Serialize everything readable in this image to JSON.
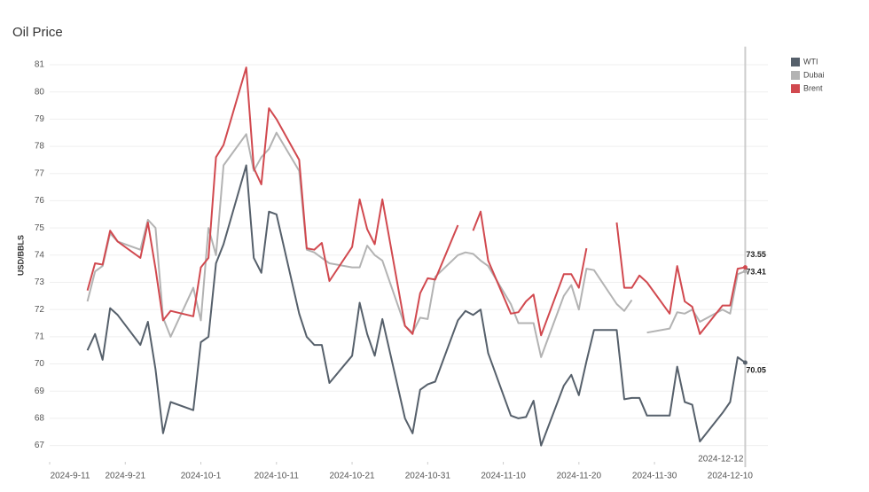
{
  "chart_data": {
    "type": "line",
    "title": "Oil Price",
    "y_label": "USD/BBLS",
    "x": [
      "2024-9-16",
      "2024-9-17",
      "2024-9-18",
      "2024-9-19",
      "2024-9-20",
      "2024-9-23",
      "2024-9-24",
      "2024-9-25",
      "2024-9-26",
      "2024-9-27",
      "2024-9-30",
      "2024-10-1",
      "2024-10-2",
      "2024-10-3",
      "2024-10-4",
      "2024-10-7",
      "2024-10-8",
      "2024-10-9",
      "2024-10-10",
      "2024-10-11",
      "2024-10-14",
      "2024-10-15",
      "2024-10-16",
      "2024-10-17",
      "2024-10-18",
      "2024-10-21",
      "2024-10-22",
      "2024-10-23",
      "2024-10-24",
      "2024-10-25",
      "2024-10-28",
      "2024-10-29",
      "2024-10-30",
      "2024-10-31",
      "2024-11-1",
      "2024-11-4",
      "2024-11-5",
      "2024-11-6",
      "2024-11-7",
      "2024-11-8",
      "2024-11-11",
      "2024-11-12",
      "2024-11-13",
      "2024-11-14",
      "2024-11-15",
      "2024-11-18",
      "2024-11-19",
      "2024-11-20",
      "2024-11-21",
      "2024-11-22",
      "2024-11-25",
      "2024-11-26",
      "2024-11-27",
      "2024-11-28",
      "2024-11-29",
      "2024-12-2",
      "2024-12-3",
      "2024-12-4",
      "2024-12-5",
      "2024-12-6",
      "2024-12-9",
      "2024-12-10",
      "2024-12-11",
      "2024-12-12"
    ],
    "series": [
      {
        "name": "WTI",
        "color": "#56606b",
        "values": [
          70.5,
          71.1,
          70.15,
          72.05,
          71.8,
          70.7,
          71.55,
          69.8,
          67.45,
          68.6,
          68.3,
          70.8,
          71.0,
          73.7,
          74.4,
          77.3,
          73.9,
          73.35,
          75.6,
          75.5,
          71.85,
          71.0,
          70.7,
          70.7,
          69.3,
          70.3,
          72.25,
          71.1,
          70.3,
          71.65,
          68.0,
          67.45,
          69.05,
          69.25,
          69.35,
          71.6,
          71.95,
          71.8,
          72.0,
          70.4,
          68.1,
          68.0,
          68.05,
          68.65,
          67.0,
          69.2,
          69.6,
          68.85,
          70.1,
          71.25,
          71.25,
          68.7,
          68.75,
          68.75,
          68.1,
          68.1,
          69.9,
          68.6,
          68.5,
          67.15,
          68.2,
          68.6,
          70.25,
          70.05
        ]
      },
      {
        "name": "Dubai",
        "color": "#b3b3b3",
        "values": [
          72.3,
          73.4,
          73.6,
          74.8,
          74.5,
          74.2,
          75.3,
          75.0,
          71.7,
          71.0,
          72.8,
          71.6,
          75.0,
          74.0,
          77.3,
          78.45,
          77.1,
          77.6,
          77.9,
          78.5,
          77.1,
          74.2,
          74.1,
          73.9,
          73.7,
          73.55,
          73.55,
          74.35,
          74.0,
          73.8,
          71.4,
          71.15,
          71.7,
          71.65,
          73.2,
          74.0,
          74.1,
          74.05,
          73.8,
          73.6,
          72.2,
          71.5,
          71.5,
          71.5,
          70.25,
          72.5,
          72.9,
          72.0,
          73.5,
          73.45,
          72.2,
          71.95,
          72.35,
          null,
          71.15,
          71.3,
          71.9,
          71.85,
          72.0,
          71.55,
          72.0,
          71.85,
          73.3,
          73.41
        ]
      },
      {
        "name": "Brent",
        "color": "#d1494f",
        "values": [
          72.7,
          73.7,
          73.65,
          74.9,
          74.5,
          73.9,
          75.2,
          73.5,
          71.6,
          71.95,
          71.75,
          73.55,
          73.9,
          77.6,
          78.05,
          80.9,
          77.2,
          76.6,
          79.4,
          79.0,
          77.5,
          74.25,
          74.2,
          74.45,
          73.05,
          74.3,
          76.05,
          74.95,
          74.4,
          76.05,
          71.4,
          71.1,
          72.6,
          73.15,
          73.1,
          75.1,
          null,
          74.9,
          75.6,
          73.8,
          71.85,
          71.9,
          72.3,
          72.55,
          71.05,
          73.3,
          73.3,
          72.8,
          74.25,
          null,
          75.2,
          72.8,
          72.8,
          73.25,
          73.0,
          71.85,
          73.6,
          72.3,
          72.1,
          71.1,
          72.15,
          72.15,
          73.5,
          73.55
        ]
      }
    ],
    "xlim": [
      "2024-9-11",
      "2024-12-15"
    ],
    "xticks": [
      "2024-9-11",
      "2024-9-21",
      "2024-10-1",
      "2024-10-11",
      "2024-10-21",
      "2024-10-31",
      "2024-11-10",
      "2024-11-20",
      "2024-11-30",
      "2024-12-10"
    ],
    "ylim": [
      66.4,
      81.6
    ],
    "yticks": [
      67,
      68,
      69,
      70,
      71,
      72,
      73,
      74,
      75,
      76,
      77,
      78,
      79,
      80,
      81
    ],
    "grid": true,
    "legend": "top-right",
    "hover_date": "2024-12-12"
  }
}
